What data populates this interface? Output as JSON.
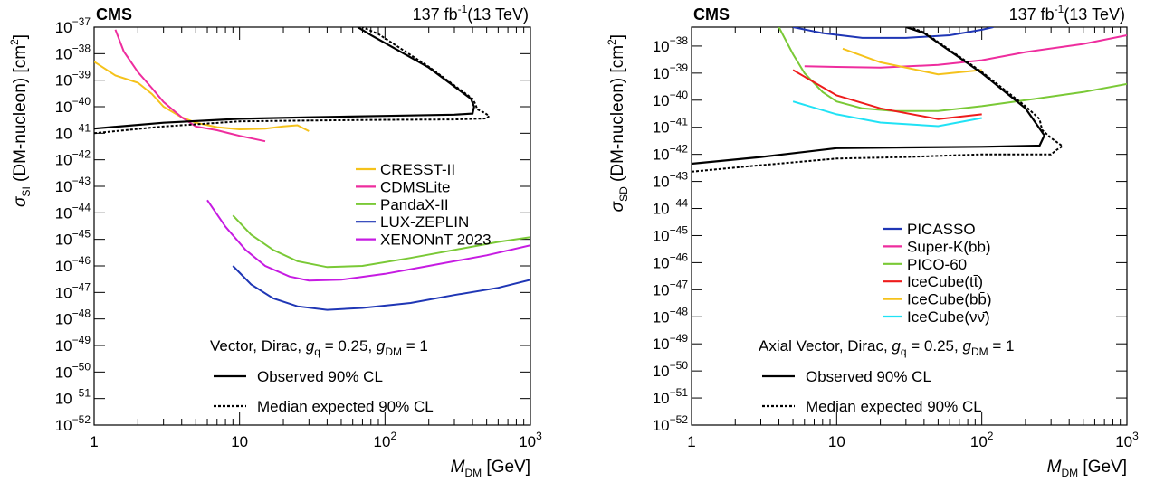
{
  "chart_data": [
    {
      "type": "line",
      "cms_label": "CMS",
      "lumi": {
        "value": "137",
        "unit_base": "fb",
        "unit_exp": "-1",
        "energy": "(13 TeV)"
      },
      "xlabel": {
        "symbol": "M",
        "sub": "DM",
        "unit": "[GeV]"
      },
      "ylabel": {
        "symbol": "σ",
        "sub": "SI",
        "text": "(DM-nucleon) [cm",
        "sup": "2",
        "close": "]"
      },
      "xlog": true,
      "ylog": true,
      "xlim": [
        1,
        1000
      ],
      "ylim": [
        1e-52,
        1e-37
      ],
      "x_ticks": [
        {
          "v": 1,
          "base": "1",
          "exp": ""
        },
        {
          "v": 10,
          "base": "10",
          "exp": ""
        },
        {
          "v": 100,
          "base": "10",
          "exp": "2"
        },
        {
          "v": 1000,
          "base": "10",
          "exp": "3"
        }
      ],
      "y_ticks": [
        {
          "v": -52,
          "base": "10",
          "exp": "−52"
        },
        {
          "v": -51,
          "base": "10",
          "exp": "−51"
        },
        {
          "v": -50,
          "base": "10",
          "exp": "−50"
        },
        {
          "v": -49,
          "base": "10",
          "exp": "−49"
        },
        {
          "v": -48,
          "base": "10",
          "exp": "−48"
        },
        {
          "v": -47,
          "base": "10",
          "exp": "−47"
        },
        {
          "v": -46,
          "base": "10",
          "exp": "−46"
        },
        {
          "v": -45,
          "base": "10",
          "exp": "−45"
        },
        {
          "v": -44,
          "base": "10",
          "exp": "−44"
        },
        {
          "v": -43,
          "base": "10",
          "exp": "−43"
        },
        {
          "v": -42,
          "base": "10",
          "exp": "−42"
        },
        {
          "v": -41,
          "base": "10",
          "exp": "−41"
        },
        {
          "v": -40,
          "base": "10",
          "exp": "−40"
        },
        {
          "v": -39,
          "base": "10",
          "exp": "−39"
        },
        {
          "v": -38,
          "base": "10",
          "exp": "−38"
        },
        {
          "v": -37,
          "base": "10",
          "exp": "−37"
        }
      ],
      "model_text": {
        "main": "Vector, Dirac,",
        "gq_sym": "g",
        "gq_sub": "q",
        "gq_val": " = 0.25,",
        "gdm_sym": "g",
        "gdm_sub": "DM",
        "gdm_val": " = 1"
      },
      "cms_legend": [
        {
          "label": "Observed 90% CL",
          "style": "solid"
        },
        {
          "label": "Median expected 90% CL",
          "style": "dashed"
        }
      ],
      "series": [
        {
          "name": "CRESST-II",
          "color": "#f5c21b",
          "points": [
            [
              1,
              5e-39
            ],
            [
              1.4,
              1.5e-39
            ],
            [
              2,
              8e-40
            ],
            [
              2.5,
              3e-40
            ],
            [
              3,
              1e-40
            ],
            [
              4,
              4e-41
            ],
            [
              5,
              2.5e-41
            ],
            [
              7,
              1.7e-41
            ],
            [
              10,
              1.4e-41
            ],
            [
              15,
              1.5e-41
            ],
            [
              20,
              1.8e-41
            ],
            [
              25,
              2e-41
            ],
            [
              30,
              1.2e-41
            ]
          ]
        },
        {
          "name": "CDMSLite",
          "color": "#ee2d9e",
          "points": [
            [
              1.4,
              8e-38
            ],
            [
              1.6,
              1.2e-38
            ],
            [
              2,
              2e-39
            ],
            [
              2.5,
              5e-40
            ],
            [
              3,
              1.5e-40
            ],
            [
              4,
              4e-41
            ],
            [
              5,
              1.8e-41
            ],
            [
              7,
              1.3e-41
            ],
            [
              10,
              8e-42
            ],
            [
              15,
              5e-42
            ]
          ]
        },
        {
          "name": "PandaX-II",
          "color": "#7ac936",
          "points": [
            [
              9,
              8e-45
            ],
            [
              12,
              1.5e-45
            ],
            [
              17,
              4e-46
            ],
            [
              25,
              1.5e-46
            ],
            [
              40,
              9e-47
            ],
            [
              70,
              1e-46
            ],
            [
              150,
              2e-46
            ],
            [
              300,
              4e-46
            ],
            [
              600,
              8e-46
            ],
            [
              1000,
              1.2e-45
            ]
          ]
        },
        {
          "name": "LUX-ZEPLIN",
          "color": "#1f36b5",
          "points": [
            [
              9,
              1e-46
            ],
            [
              12,
              2e-47
            ],
            [
              17,
              6e-48
            ],
            [
              25,
              3e-48
            ],
            [
              40,
              2.2e-48
            ],
            [
              70,
              2.6e-48
            ],
            [
              150,
              4e-48
            ],
            [
              300,
              8e-48
            ],
            [
              600,
              1.5e-47
            ],
            [
              1000,
              3e-47
            ]
          ]
        },
        {
          "name": "XENONnT 2023",
          "color": "#c61be2",
          "points": [
            [
              6,
              3e-44
            ],
            [
              8,
              3e-45
            ],
            [
              11,
              4e-46
            ],
            [
              15,
              1e-46
            ],
            [
              22,
              4e-47
            ],
            [
              30,
              2.8e-47
            ],
            [
              50,
              3e-47
            ],
            [
              100,
              5e-47
            ],
            [
              200,
              1e-46
            ],
            [
              500,
              2.5e-46
            ],
            [
              1000,
              6e-46
            ]
          ]
        }
      ],
      "observed": [
        [
          1,
          1.5e-41
        ],
        [
          3,
          2.5e-41
        ],
        [
          10,
          3.5e-41
        ],
        [
          30,
          4e-41
        ],
        [
          100,
          4.5e-41
        ],
        [
          300,
          5e-41
        ],
        [
          400,
          5.5e-41
        ],
        [
          410,
          1e-40
        ],
        [
          390,
          2e-40
        ],
        [
          200,
          3e-39
        ],
        [
          80,
          5e-38
        ],
        [
          65,
          1e-37
        ]
      ],
      "expected": [
        [
          1,
          1e-41
        ],
        [
          3,
          1.8e-41
        ],
        [
          10,
          2.8e-41
        ],
        [
          30,
          3e-41
        ],
        [
          100,
          3.2e-41
        ],
        [
          300,
          3.3e-41
        ],
        [
          500,
          3.6e-41
        ],
        [
          520,
          4.5e-41
        ],
        [
          480,
          6e-41
        ],
        [
          430,
          8e-41
        ],
        [
          420,
          1.2e-40
        ],
        [
          400,
          2e-40
        ],
        [
          200,
          3.2e-39
        ],
        [
          90,
          5.5e-38
        ],
        [
          70,
          1e-37
        ]
      ]
    },
    {
      "type": "line",
      "cms_label": "CMS",
      "lumi": {
        "value": "137",
        "unit_base": "fb",
        "unit_exp": "-1",
        "energy": "(13 TeV)"
      },
      "xlabel": {
        "symbol": "M",
        "sub": "DM",
        "unit": "[GeV]"
      },
      "ylabel": {
        "symbol": "σ",
        "sub": "SD",
        "text": "(DM-nucleon) [cm",
        "sup": "2",
        "close": "]"
      },
      "xlog": true,
      "ylog": true,
      "xlim": [
        1,
        1000
      ],
      "ylim": [
        1e-52,
        5e-38
      ],
      "x_ticks": [
        {
          "v": 1,
          "base": "1",
          "exp": ""
        },
        {
          "v": 10,
          "base": "10",
          "exp": ""
        },
        {
          "v": 100,
          "base": "10",
          "exp": "2"
        },
        {
          "v": 1000,
          "base": "10",
          "exp": "3"
        }
      ],
      "y_ticks": [
        {
          "v": -52,
          "base": "10",
          "exp": "−52"
        },
        {
          "v": -51,
          "base": "10",
          "exp": "−51"
        },
        {
          "v": -50,
          "base": "10",
          "exp": "−50"
        },
        {
          "v": -49,
          "base": "10",
          "exp": "−49"
        },
        {
          "v": -48,
          "base": "10",
          "exp": "−48"
        },
        {
          "v": -47,
          "base": "10",
          "exp": "−47"
        },
        {
          "v": -46,
          "base": "10",
          "exp": "−46"
        },
        {
          "v": -45,
          "base": "10",
          "exp": "−45"
        },
        {
          "v": -44,
          "base": "10",
          "exp": "−44"
        },
        {
          "v": -43,
          "base": "10",
          "exp": "−43"
        },
        {
          "v": -42,
          "base": "10",
          "exp": "−42"
        },
        {
          "v": -41,
          "base": "10",
          "exp": "−41"
        },
        {
          "v": -40,
          "base": "10",
          "exp": "−40"
        },
        {
          "v": -39,
          "base": "10",
          "exp": "−39"
        },
        {
          "v": -38,
          "base": "10",
          "exp": "−38"
        }
      ],
      "model_text": {
        "main": "Axial Vector, Dirac,",
        "gq_sym": "g",
        "gq_sub": "q",
        "gq_val": " = 0.25,",
        "gdm_sym": "g",
        "gdm_sub": "DM",
        "gdm_val": " = 1"
      },
      "cms_legend": [
        {
          "label": "Observed 90% CL",
          "style": "solid"
        },
        {
          "label": "Median expected 90% CL",
          "style": "dashed"
        }
      ],
      "series": [
        {
          "name": "PICASSO",
          "color": "#1f36b5",
          "points": [
            [
              5,
              5e-38
            ],
            [
              8,
              3e-38
            ],
            [
              15,
              2e-38
            ],
            [
              30,
              2e-38
            ],
            [
              60,
              2.5e-38
            ],
            [
              100,
              4e-38
            ],
            [
              120,
              5e-38
            ]
          ]
        },
        {
          "name": "Super-K(bb)",
          "color": "#ee2d9e",
          "points": [
            [
              6,
              1.8e-39
            ],
            [
              10,
              1.7e-39
            ],
            [
              20,
              1.6e-39
            ],
            [
              50,
              2e-39
            ],
            [
              100,
              3e-39
            ],
            [
              200,
              6e-39
            ],
            [
              500,
              1.2e-38
            ],
            [
              1000,
              2.5e-38
            ]
          ]
        },
        {
          "name": "PICO-60",
          "color": "#7ac936",
          "points": [
            [
              4,
              5e-38
            ],
            [
              5,
              5e-39
            ],
            [
              6,
              1e-39
            ],
            [
              8,
              2e-40
            ],
            [
              10,
              9e-41
            ],
            [
              15,
              5e-41
            ],
            [
              25,
              4e-41
            ],
            [
              50,
              4e-41
            ],
            [
              100,
              6e-41
            ],
            [
              200,
              1e-40
            ],
            [
              500,
              2e-40
            ],
            [
              1000,
              4e-40
            ]
          ]
        },
        {
          "name": "IceCube(tt̄)",
          "color": "#ee1c1c",
          "points": [
            [
              5,
              1.3e-39
            ],
            [
              10,
              1.5e-40
            ],
            [
              20,
              5e-41
            ],
            [
              50,
              2e-41
            ],
            [
              100,
              3e-41
            ]
          ]
        },
        {
          "name": "IceCube(bb̄)",
          "color": "#f5c21b",
          "points": [
            [
              11,
              8e-39
            ],
            [
              20,
              2.5e-39
            ],
            [
              50,
              9e-40
            ],
            [
              100,
              1.3e-39
            ]
          ]
        },
        {
          "name": "IceCube(νν̄)",
          "color": "#20e2f5",
          "points": [
            [
              5,
              9e-41
            ],
            [
              10,
              3e-41
            ],
            [
              20,
              1.5e-41
            ],
            [
              50,
              1.1e-41
            ],
            [
              100,
              2.2e-41
            ]
          ]
        }
      ],
      "observed": [
        [
          1,
          4.5e-43
        ],
        [
          3,
          8e-43
        ],
        [
          10,
          1.7e-42
        ],
        [
          30,
          1.8e-42
        ],
        [
          100,
          1.9e-42
        ],
        [
          250,
          2.1e-42
        ],
        [
          270,
          5e-42
        ],
        [
          200,
          5e-41
        ],
        [
          100,
          1e-39
        ],
        [
          40,
          3e-38
        ],
        [
          30,
          5e-38
        ]
      ],
      "expected": [
        [
          1,
          2.3e-43
        ],
        [
          3,
          4e-43
        ],
        [
          10,
          7e-43
        ],
        [
          30,
          8e-43
        ],
        [
          100,
          1e-42
        ],
        [
          300,
          1e-42
        ],
        [
          330,
          1.5e-42
        ],
        [
          360,
          2e-42
        ],
        [
          300,
          4e-42
        ],
        [
          260,
          8e-42
        ],
        [
          250,
          2e-41
        ],
        [
          200,
          6e-41
        ],
        [
          100,
          1.1e-39
        ],
        [
          40,
          3.2e-38
        ],
        [
          32,
          5e-38
        ]
      ]
    }
  ]
}
